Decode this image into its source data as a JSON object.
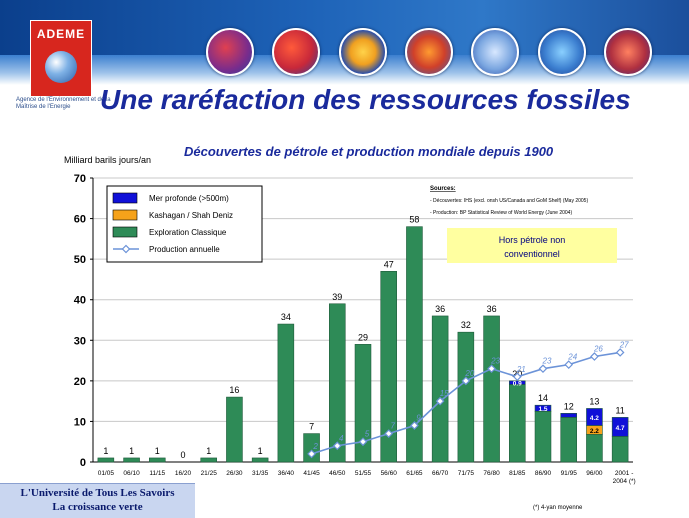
{
  "header": {
    "logo_text": "ADEME",
    "agency_text": "Agence de l'Environnement et de la Maîtrise de l'Energie",
    "title": "Une raréfaction des ressources fossiles",
    "badges": [
      "badge-1",
      "badge-2",
      "badge-3",
      "badge-4",
      "badge-5",
      "badge-6",
      "badge-7"
    ]
  },
  "footer": {
    "line1": "L'Université de Tous Les Savoirs",
    "line2": "La croissance verte",
    "footnote": "(*) 4-yan moyenne"
  },
  "colors": {
    "classic": "#2e8b57",
    "kashagan": "#f6a21a",
    "deep": "#1010d8",
    "production": "#6c93d8",
    "note_bg": "#ffffa0"
  },
  "chart_data": {
    "type": "bar",
    "title": "Découvertes de pétrole et production mondiale depuis 1900",
    "ylabel": "Milliard barils jours/an",
    "ylim": [
      0,
      70
    ],
    "yticks": [
      0,
      10,
      20,
      30,
      40,
      50,
      60,
      70
    ],
    "categories": [
      "01/05",
      "06/10",
      "11/15",
      "16/20",
      "21/25",
      "26/30",
      "31/35",
      "36/40",
      "41/45",
      "46/50",
      "51/55",
      "56/60",
      "61/65",
      "66/70",
      "71/75",
      "76/80",
      "81/85",
      "86/90",
      "91/95",
      "96/00",
      "2001 - 2004 (*)"
    ],
    "series": [
      {
        "name": "Exploration Classique",
        "values": [
          1,
          1,
          1,
          0,
          1,
          16,
          1,
          34,
          7,
          39,
          29,
          47,
          58,
          36,
          32,
          36,
          19.1,
          12.5,
          11,
          6.8,
          6.3
        ]
      },
      {
        "name": "Kashagan / Shah Deniz",
        "values": [
          0,
          0,
          0,
          0,
          0,
          0,
          0,
          0,
          0,
          0,
          0,
          0,
          0,
          0,
          0,
          0,
          0,
          0,
          0,
          2.2,
          0
        ]
      },
      {
        "name": "Mer profonde (>500m)",
        "values": [
          0,
          0,
          0,
          0,
          0,
          0,
          0,
          0,
          0,
          0,
          0,
          0,
          0,
          0,
          0,
          0,
          0.9,
          1.5,
          1,
          4.2,
          4.7
        ]
      },
      {
        "name": "Production annuelle",
        "type": "line",
        "x": [
          "41/45",
          "46/50",
          "51/55",
          "56/60",
          "61/65",
          "66/70",
          "71/75",
          "76/80",
          "81/85",
          "86/90",
          "91/95",
          "96/00",
          "2001 - 2004 (*)"
        ],
        "values": [
          2,
          4,
          5,
          7,
          9,
          15,
          20,
          23,
          21,
          23,
          24,
          26,
          27
        ]
      }
    ],
    "total_labels": [
      "1",
      "1",
      "1",
      "0",
      "1",
      "16",
      "1",
      "34",
      "7",
      "39",
      "29",
      "47",
      "58",
      "36",
      "32",
      "36",
      "20",
      "14",
      "12",
      "13",
      "11"
    ],
    "inner_labels": [
      {
        "category": "81/85",
        "text": "0.9"
      },
      {
        "category": "86/90",
        "text": "1.5"
      },
      {
        "category": "96/00",
        "text": "4.2"
      },
      {
        "category": "96/00",
        "text": "2.2"
      },
      {
        "category": "2001 - 2004 (*)",
        "text": "4.7"
      }
    ],
    "line_labels": [
      "2",
      "4",
      "5",
      "7",
      "9",
      "15",
      "20",
      "23",
      "21",
      "23",
      "24",
      "26",
      "27"
    ],
    "legend": [
      "Mer profonde (>500m)",
      "Kashagan / Shah Deniz",
      "Exploration Classique",
      "Production annuelle"
    ],
    "legend_position": "top-left",
    "sources": {
      "heading": "Sources:",
      "line1": "- Découvertes: IHS (excl. onsh US/Canada and GoM Shelf) (May 2005)",
      "line2": "- Production: BP Statistical Review of World Energy (June 2004)"
    },
    "note": {
      "line1": "Hors pétrole non",
      "line2": "conventionnel"
    },
    "grid": true
  }
}
